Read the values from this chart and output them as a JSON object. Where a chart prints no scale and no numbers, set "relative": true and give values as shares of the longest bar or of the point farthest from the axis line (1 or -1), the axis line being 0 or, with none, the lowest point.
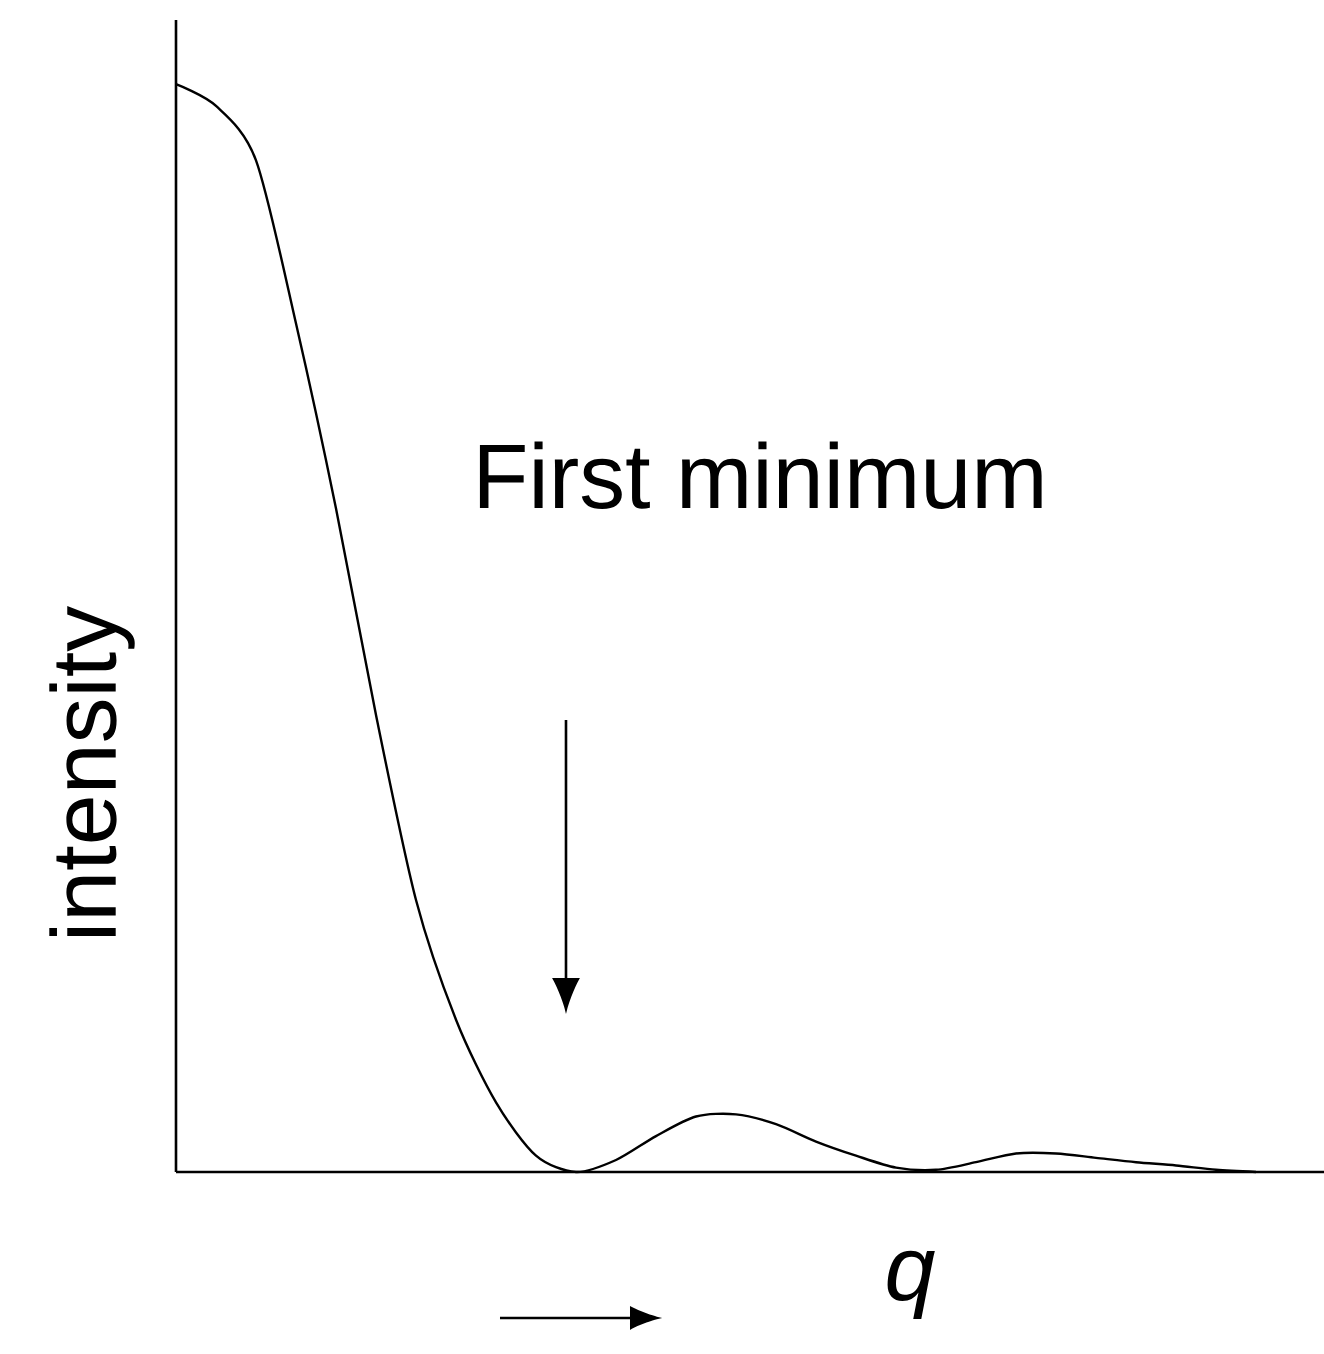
{
  "chart_data": {
    "type": "line",
    "relative": true,
    "xlabel": "q",
    "ylabel": "intensity",
    "annotations": [
      "First minimum"
    ],
    "color": "#000000",
    "marker": "none",
    "line_style": "solid",
    "categories": [
      null,
      null,
      null,
      null,
      null,
      null,
      null,
      null,
      null,
      null,
      null,
      null,
      null,
      null,
      null,
      null,
      null,
      null,
      null,
      null,
      null,
      null,
      null,
      null,
      null,
      null,
      null,
      null
    ],
    "values": [
      1,
      0.98,
      0.93,
      0.78,
      0.61,
      0.42,
      0.25,
      0.14,
      0.064,
      0.015,
      0,
      0.011,
      0.033,
      0.051,
      0.053,
      0.044,
      0.028,
      0.015,
      0.004,
      0.002,
      0.009,
      0.017,
      0.017,
      0.013,
      0.009,
      0.006,
      0.002,
      0
    ]
  }
}
